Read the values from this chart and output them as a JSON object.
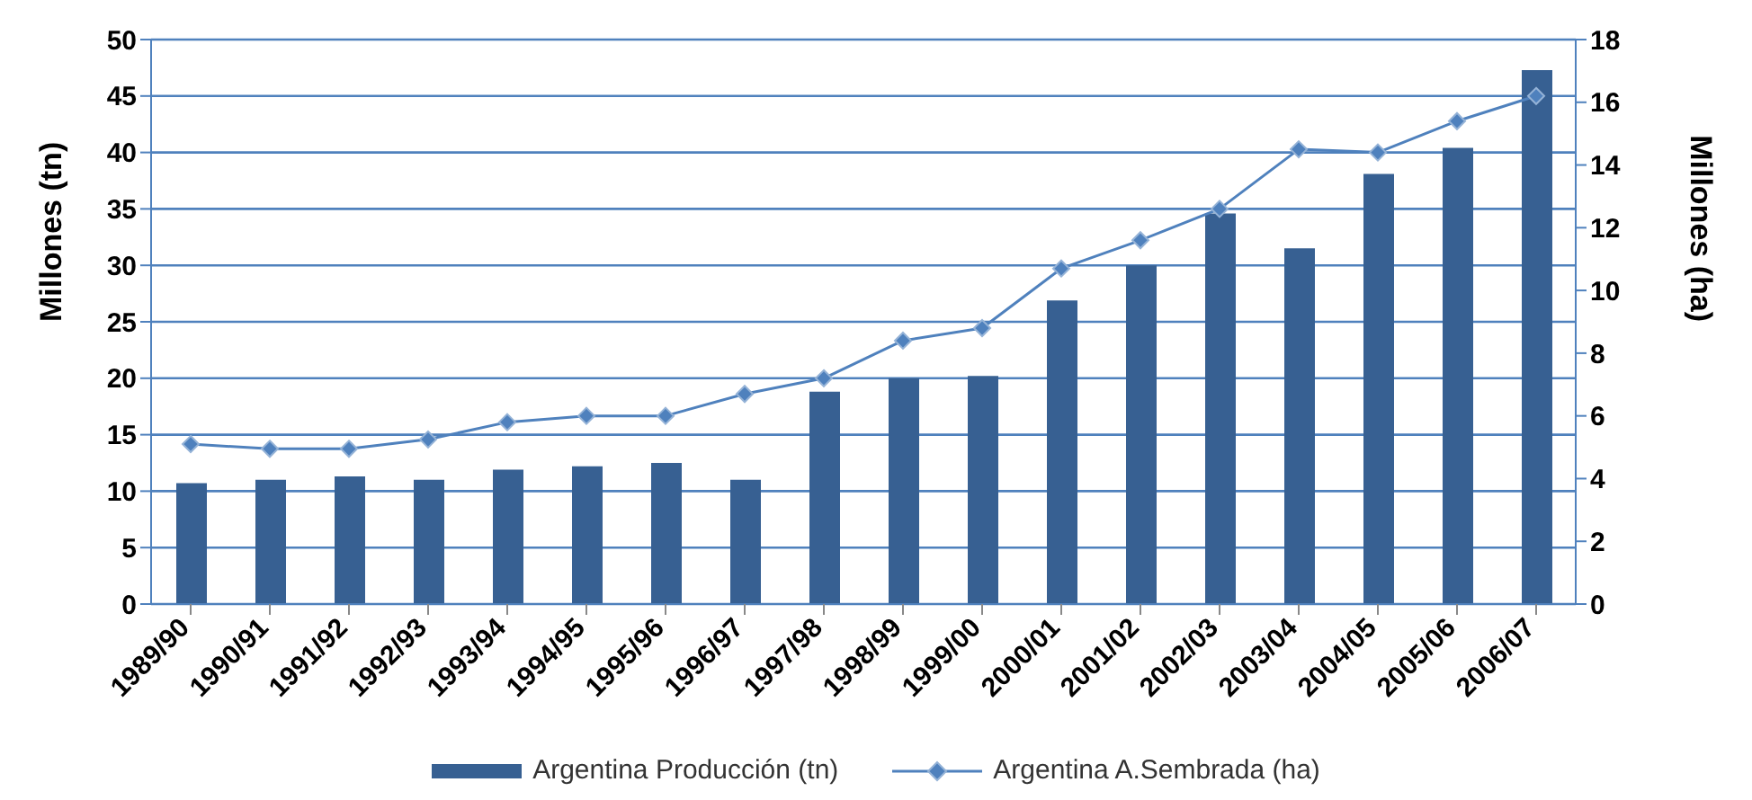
{
  "chart_data": {
    "type": "bar",
    "categories": [
      "1989/90",
      "1990/91",
      "1991/92",
      "1992/93",
      "1993/94",
      "1994/95",
      "1995/96",
      "1996/97",
      "1997/98",
      "1998/99",
      "1999/00",
      "2000/01",
      "2001/02",
      "2002/03",
      "2003/04",
      "2004/05",
      "2005/06",
      "2006/07"
    ],
    "ylabel": "Millones (tn)",
    "y2label": "Millones (ha)",
    "series": [
      {
        "name": "Argentina Producción (tn)",
        "color": "#376092",
        "values": [
          10.7,
          11.0,
          11.3,
          11.0,
          11.9,
          12.2,
          12.5,
          11.0,
          18.8,
          20.0,
          20.2,
          26.9,
          30.0,
          34.6,
          31.5,
          38.1,
          40.4,
          47.3
        ]
      },
      {
        "name": "Argentina A.Sembrada (ha)",
        "type": "line",
        "axis": "y2",
        "color": "#4f81bd",
        "marker": "diamond",
        "values": [
          5.1,
          4.95,
          4.95,
          5.25,
          5.8,
          6.0,
          6.0,
          6.7,
          7.2,
          8.4,
          8.8,
          10.7,
          11.6,
          12.6,
          14.5,
          14.4,
          15.4,
          16.2
        ]
      }
    ],
    "ylim": [
      0,
      50
    ],
    "yticks": [
      0,
      5,
      10,
      15,
      20,
      25,
      30,
      35,
      40,
      45,
      50
    ],
    "y2lim": [
      0,
      18
    ],
    "y2ticks": [
      0,
      2,
      4,
      6,
      8,
      10,
      12,
      14,
      16,
      18
    ],
    "grid": "y",
    "legend": "bottom"
  }
}
